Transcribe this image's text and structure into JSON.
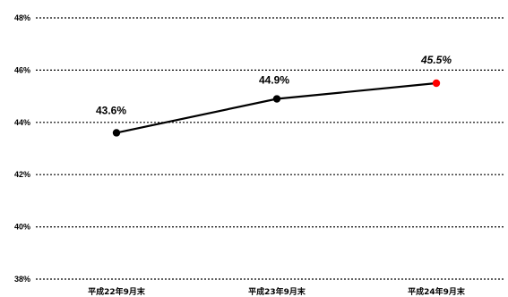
{
  "chart_data": {
    "type": "line",
    "title": "",
    "xlabel": "",
    "ylabel": "",
    "categories": [
      "平成22年9月末",
      "平成23年9月末",
      "平成24年9月末"
    ],
    "series": [
      {
        "values": [
          43.6,
          44.9,
          45.5
        ],
        "data_labels": [
          "43.6%",
          "44.9%",
          "45.5%"
        ],
        "color": "#000000",
        "highlight_color": "#ff0000",
        "highlight_index": 2
      }
    ],
    "ylim": [
      38,
      48
    ],
    "yticks": [
      38,
      40,
      42,
      44,
      46,
      48
    ],
    "ytick_labels": [
      "38%",
      "40%",
      "42%",
      "44%",
      "46%",
      "48%"
    ],
    "grid": true,
    "grid_style": "dotted",
    "legend": "none"
  }
}
